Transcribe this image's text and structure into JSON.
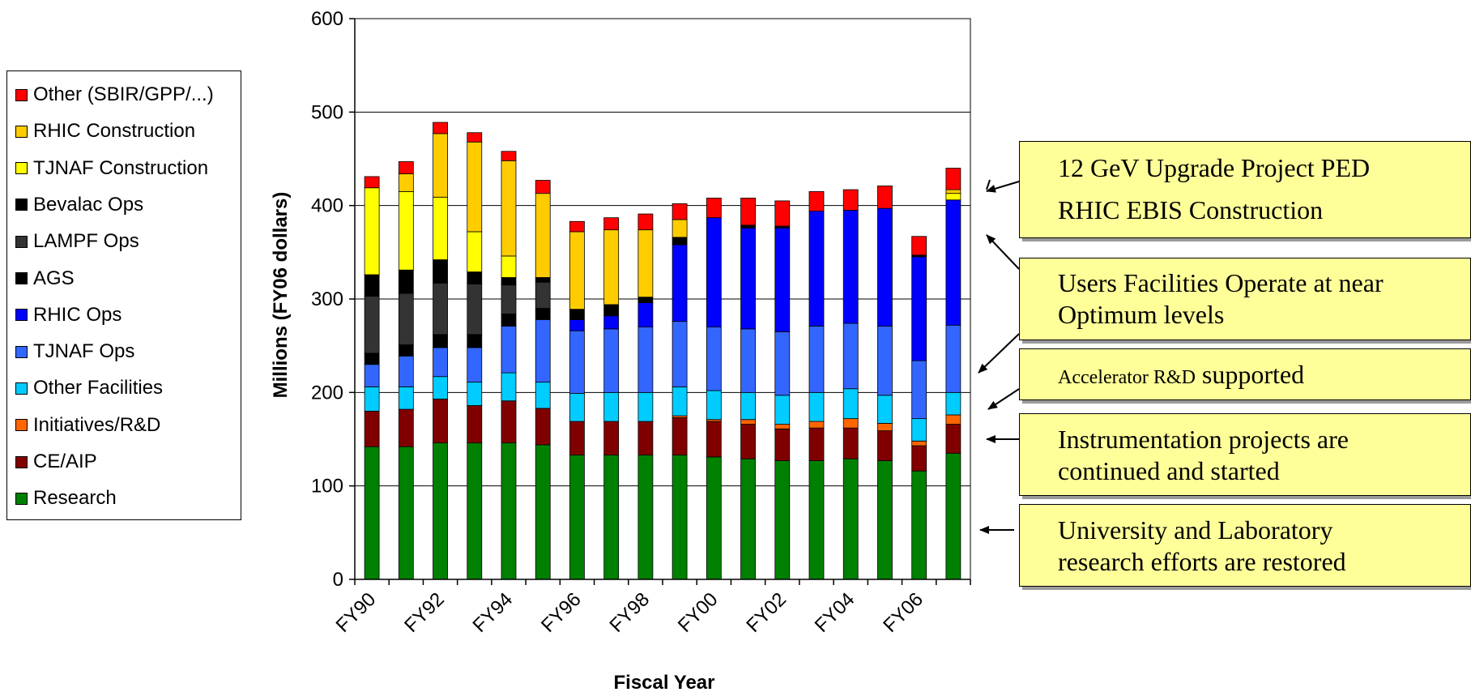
{
  "chart_data": {
    "type": "bar",
    "stacked": true,
    "xlabel": "Fiscal Year",
    "ylabel": "Millions (FY06 dollars)",
    "ylim": [
      0,
      600
    ],
    "yticks": [
      0,
      100,
      200,
      300,
      400,
      500,
      600
    ],
    "categories": [
      "FY90",
      "FY91",
      "FY92",
      "FY93",
      "FY94",
      "FY95",
      "FY96",
      "FY97",
      "FY98",
      "FY99",
      "FY00",
      "FY01",
      "FY02",
      "FY03",
      "FY04",
      "FY05",
      "FY06",
      "FY07"
    ],
    "tick_labels": [
      "FY90",
      "",
      "FY92",
      "",
      "FY94",
      "",
      "FY96",
      "",
      "FY98",
      "",
      "FY00",
      "",
      "FY02",
      "",
      "FY04",
      "",
      "FY06",
      ""
    ],
    "grid": true,
    "legend_position": "left",
    "series": [
      {
        "name": "Research",
        "color": "#008000",
        "values": [
          142,
          142,
          146,
          146,
          146,
          144,
          133,
          133,
          133,
          133,
          131,
          129,
          127,
          127,
          129,
          127,
          116,
          135
        ]
      },
      {
        "name": "CE/AIP",
        "color": "#800000",
        "values": [
          38,
          40,
          47,
          40,
          45,
          39,
          36,
          36,
          36,
          40,
          38,
          37,
          34,
          35,
          33,
          32,
          27,
          31
        ]
      },
      {
        "name": "Initiatives/R&D",
        "color": "#ff6600",
        "values": [
          0,
          0,
          0,
          0,
          0,
          0,
          0,
          0,
          0,
          2,
          2,
          5,
          5,
          7,
          10,
          8,
          5,
          10
        ]
      },
      {
        "name": "Other Facilities",
        "color": "#00ccff",
        "values": [
          26,
          24,
          24,
          25,
          30,
          28,
          30,
          31,
          31,
          31,
          31,
          29,
          31,
          31,
          32,
          30,
          24,
          24
        ]
      },
      {
        "name": "TJNAF Ops",
        "color": "#3366ff",
        "values": [
          24,
          33,
          31,
          37,
          50,
          67,
          67,
          68,
          70,
          70,
          68,
          68,
          68,
          71,
          70,
          74,
          62,
          72
        ]
      },
      {
        "name": "RHIC Ops",
        "color": "#0000ff",
        "values": [
          0,
          0,
          0,
          0,
          0,
          0,
          12,
          14,
          26,
          82,
          117,
          108,
          111,
          123,
          121,
          126,
          111,
          134
        ]
      },
      {
        "name": "AGS",
        "color": "#000000",
        "values": [
          12,
          12,
          14,
          14,
          13,
          12,
          11,
          12,
          6,
          8,
          0,
          0,
          0,
          0,
          0,
          0,
          0,
          0
        ]
      },
      {
        "name": "LAMPF Ops",
        "color": "#333333",
        "values": [
          61,
          55,
          55,
          54,
          31,
          28,
          0,
          0,
          0,
          0,
          0,
          0,
          0,
          0,
          0,
          0,
          0,
          0
        ]
      },
      {
        "name": "Bevalac Ops",
        "color": "#000000",
        "values": [
          23,
          25,
          25,
          13,
          8,
          5,
          0,
          0,
          0,
          0,
          0,
          3,
          2,
          0,
          0,
          0,
          2,
          0
        ]
      },
      {
        "name": "TJNAF Construction",
        "color": "#ffff00",
        "values": [
          93,
          84,
          67,
          43,
          23,
          0,
          0,
          0,
          0,
          0,
          0,
          0,
          0,
          0,
          0,
          0,
          0,
          7
        ]
      },
      {
        "name": "RHIC Construction",
        "color": "#ffcc00",
        "values": [
          0,
          19,
          68,
          96,
          102,
          90,
          83,
          80,
          72,
          19,
          0,
          0,
          0,
          0,
          0,
          0,
          0,
          4
        ]
      },
      {
        "name": "Other (SBIR/GPP/...)",
        "color": "#ff0000",
        "values": [
          12,
          13,
          12,
          10,
          10,
          14,
          11,
          13,
          17,
          17,
          21,
          29,
          27,
          21,
          22,
          24,
          20,
          23
        ]
      }
    ]
  },
  "legend_items": [
    {
      "label": "Other (SBIR/GPP/...)",
      "color": "#ff0000"
    },
    {
      "label": "RHIC Construction",
      "color": "#ffcc00"
    },
    {
      "label": "TJNAF Construction",
      "color": "#ffff00"
    },
    {
      "label": "Bevalac Ops",
      "color": "#000000"
    },
    {
      "label": "LAMPF Ops",
      "color": "#333333"
    },
    {
      "label": "AGS",
      "color": "#000000"
    },
    {
      "label": "RHIC Ops",
      "color": "#0000ff"
    },
    {
      "label": "TJNAF Ops",
      "color": "#3366ff"
    },
    {
      "label": "Other Facilities",
      "color": "#00ccff"
    },
    {
      "label": "Initiatives/R&D",
      "color": "#ff6600"
    },
    {
      "label": "CE/AIP",
      "color": "#800000"
    },
    {
      "label": "Research",
      "color": "#008000"
    }
  ],
  "callouts": {
    "c1": {
      "line1": "12 GeV Upgrade Project PED",
      "line2": "RHIC EBIS Construction"
    },
    "c2": {
      "line1": "Users Facilities Operate at near",
      "line2": "Optimum levels"
    },
    "c3": {
      "small": "Accelerator R&D",
      "large": "supported"
    },
    "c4": {
      "line1": "Instrumentation projects are",
      "line2": "continued and started"
    },
    "c5": {
      "line1": "University and Laboratory",
      "line2": "research efforts are restored"
    }
  }
}
